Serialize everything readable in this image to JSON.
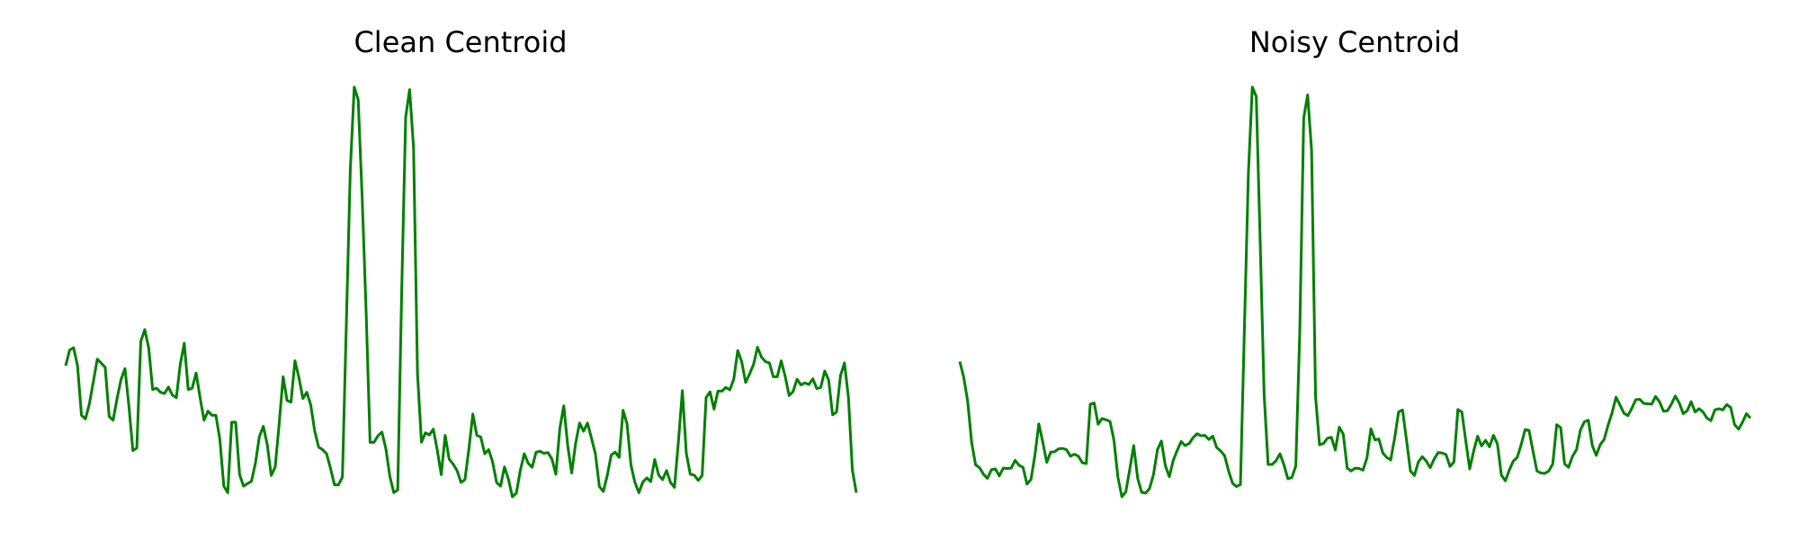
{
  "line_color": "#008000",
  "panels": [
    {
      "title": "Clean Centroid"
    },
    {
      "title": "Noisy Centroid"
    }
  ],
  "chart_data": [
    {
      "type": "line",
      "title": "Clean Centroid",
      "grid": false,
      "axes_visible": false,
      "xlim": [
        0,
        179
      ],
      "ylim": [
        0,
        1
      ],
      "series": [
        {
          "color": "#008000",
          "values": [
            0.32,
            0.358,
            0.364,
            0.32,
            0.199,
            0.19,
            0.227,
            0.281,
            0.336,
            0.326,
            0.316,
            0.196,
            0.187,
            0.24,
            0.286,
            0.313,
            0.221,
            0.113,
            0.119,
            0.379,
            0.408,
            0.364,
            0.262,
            0.265,
            0.255,
            0.252,
            0.268,
            0.248,
            0.242,
            0.324,
            0.375,
            0.262,
            0.265,
            0.302,
            0.242,
            0.187,
            0.209,
            0.199,
            0.199,
            0.14,
            0.026,
            0.01,
            0.182,
            0.182,
            0.054,
            0.026,
            0.032,
            0.038,
            0.082,
            0.147,
            0.172,
            0.127,
            0.052,
            0.073,
            0.177,
            0.293,
            0.235,
            0.231,
            0.332,
            0.291,
            0.24,
            0.255,
            0.224,
            0.16,
            0.121,
            0.115,
            0.105,
            0.069,
            0.029,
            0.029,
            0.048,
            0.422,
            0.799,
            1.0,
            0.969,
            0.73,
            0.453,
            0.133,
            0.133,
            0.149,
            0.158,
            0.117,
            0.05,
            0.01,
            0.017,
            0.501,
            0.926,
            0.994,
            0.852,
            0.3,
            0.133,
            0.156,
            0.151,
            0.165,
            0.114,
            0.054,
            0.15,
            0.092,
            0.08,
            0.064,
            0.035,
            0.042,
            0.117,
            0.202,
            0.15,
            0.146,
            0.105,
            0.115,
            0.085,
            0.035,
            0.026,
            0.073,
            0.043,
            0.0,
            0.009,
            0.064,
            0.105,
            0.082,
            0.072,
            0.109,
            0.111,
            0.106,
            0.108,
            0.092,
            0.055,
            0.167,
            0.222,
            0.125,
            0.058,
            0.131,
            0.18,
            0.16,
            0.18,
            0.143,
            0.105,
            0.025,
            0.013,
            0.052,
            0.102,
            0.109,
            0.096,
            0.211,
            0.178,
            0.077,
            0.035,
            0.01,
            0.036,
            0.046,
            0.037,
            0.091,
            0.053,
            0.042,
            0.064,
            0.035,
            0.023,
            0.135,
            0.259,
            0.106,
            0.055,
            0.053,
            0.04,
            0.052,
            0.242,
            0.256,
            0.214,
            0.258,
            0.258,
            0.267,
            0.261,
            0.287,
            0.357,
            0.33,
            0.279,
            0.3,
            0.323,
            0.365,
            0.341,
            0.33,
            0.327,
            0.293,
            0.293,
            0.332,
            0.294,
            0.247,
            0.257,
            0.287,
            0.273,
            0.278,
            0.274,
            0.288,
            0.264,
            0.267,
            0.307,
            0.285,
            0.2,
            0.207,
            0.296,
            0.327,
            0.243,
            0.065,
            0.01
          ]
        }
      ]
    },
    {
      "type": "line",
      "title": "Noisy Centroid",
      "grid": false,
      "axes_visible": false,
      "xlim": [
        0,
        179
      ],
      "ylim": [
        0,
        1
      ],
      "series": [
        {
          "color": "#008000",
          "values": [
            0.33,
            0.292,
            0.233,
            0.133,
            0.078,
            0.071,
            0.055,
            0.045,
            0.066,
            0.068,
            0.051,
            0.07,
            0.069,
            0.07,
            0.089,
            0.077,
            0.072,
            0.031,
            0.042,
            0.101,
            0.178,
            0.133,
            0.084,
            0.109,
            0.11,
            0.117,
            0.118,
            0.115,
            0.099,
            0.104,
            0.099,
            0.083,
            0.081,
            0.226,
            0.229,
            0.177,
            0.191,
            0.188,
            0.184,
            0.138,
            0.048,
            0.0,
            0.012,
            0.067,
            0.125,
            0.045,
            0.011,
            0.009,
            0.02,
            0.054,
            0.115,
            0.136,
            0.076,
            0.049,
            0.089,
            0.113,
            0.135,
            0.125,
            0.13,
            0.144,
            0.154,
            0.149,
            0.15,
            0.14,
            0.148,
            0.12,
            0.112,
            0.1,
            0.063,
            0.033,
            0.025,
            0.03,
            0.41,
            0.788,
            1.0,
            0.977,
            0.62,
            0.247,
            0.079,
            0.079,
            0.088,
            0.105,
            0.078,
            0.044,
            0.047,
            0.075,
            0.4,
            0.925,
            0.981,
            0.845,
            0.244,
            0.127,
            0.13,
            0.143,
            0.145,
            0.114,
            0.17,
            0.153,
            0.07,
            0.063,
            0.07,
            0.069,
            0.065,
            0.095,
            0.166,
            0.139,
            0.141,
            0.107,
            0.096,
            0.09,
            0.143,
            0.207,
            0.212,
            0.139,
            0.063,
            0.052,
            0.085,
            0.098,
            0.087,
            0.071,
            0.092,
            0.108,
            0.107,
            0.103,
            0.074,
            0.085,
            0.213,
            0.207,
            0.136,
            0.068,
            0.112,
            0.148,
            0.124,
            0.138,
            0.122,
            0.15,
            0.129,
            0.053,
            0.039,
            0.065,
            0.087,
            0.096,
            0.127,
            0.164,
            0.162,
            0.111,
            0.063,
            0.058,
            0.057,
            0.063,
            0.08,
            0.176,
            0.169,
            0.08,
            0.072,
            0.099,
            0.115,
            0.163,
            0.183,
            0.187,
            0.125,
            0.101,
            0.127,
            0.14,
            0.175,
            0.205,
            0.243,
            0.224,
            0.204,
            0.198,
            0.216,
            0.237,
            0.238,
            0.228,
            0.227,
            0.226,
            0.245,
            0.232,
            0.209,
            0.21,
            0.226,
            0.246,
            0.229,
            0.203,
            0.21,
            0.232,
            0.207,
            0.215,
            0.207,
            0.192,
            0.186,
            0.212,
            0.215,
            0.212,
            0.225,
            0.218,
            0.176,
            0.165,
            0.182,
            0.203,
            0.192
          ]
        }
      ]
    }
  ]
}
